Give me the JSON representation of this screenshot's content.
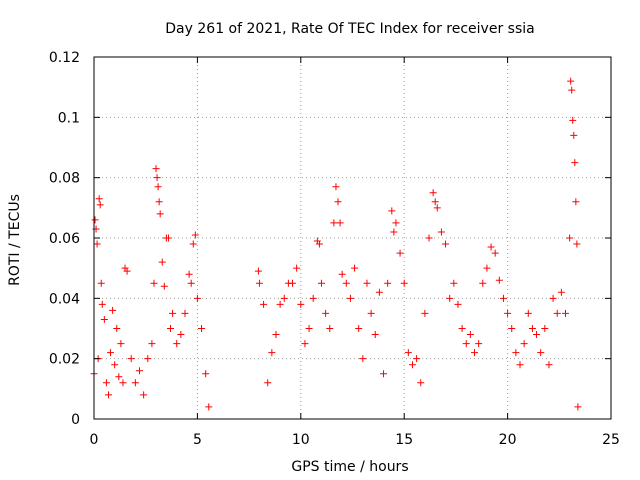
{
  "chart_data": {
    "type": "scatter",
    "title": "Day 261 of 2021, Rate Of TEC Index for receiver ssia",
    "xlabel": "GPS time / hours",
    "ylabel": "ROTI / TECUs",
    "xlim": [
      0,
      25
    ],
    "ylim": [
      0,
      0.12
    ],
    "xticks": [
      0,
      5,
      10,
      15,
      20,
      25
    ],
    "yticks": [
      0,
      0.02,
      0.04,
      0.06,
      0.08,
      0.1,
      0.12
    ],
    "xtick_labels": [
      "0",
      "5",
      "10",
      "15",
      "20",
      "25"
    ],
    "ytick_labels": [
      "0",
      "0.02",
      "0.04",
      "0.06",
      "0.08",
      "0.1",
      "0.12"
    ],
    "grid": true,
    "marker": "+",
    "color": "#ff0000",
    "data_gap_hours": [
      5.6,
      7.9
    ],
    "series": [
      {
        "points": [
          [
            0.0,
            0.015
          ],
          [
            0.05,
            0.066
          ],
          [
            0.1,
            0.063
          ],
          [
            0.15,
            0.058
          ],
          [
            0.2,
            0.02
          ],
          [
            0.25,
            0.073
          ],
          [
            0.3,
            0.071
          ],
          [
            0.35,
            0.045
          ],
          [
            0.4,
            0.038
          ],
          [
            0.5,
            0.033
          ],
          [
            0.6,
            0.012
          ],
          [
            0.7,
            0.008
          ],
          [
            0.8,
            0.022
          ],
          [
            0.9,
            0.036
          ],
          [
            1.0,
            0.018
          ],
          [
            1.1,
            0.03
          ],
          [
            1.2,
            0.014
          ],
          [
            1.3,
            0.025
          ],
          [
            1.4,
            0.012
          ],
          [
            1.5,
            0.05
          ],
          [
            1.6,
            0.049
          ],
          [
            1.8,
            0.02
          ],
          [
            2.0,
            0.012
          ],
          [
            2.2,
            0.016
          ],
          [
            2.4,
            0.008
          ],
          [
            2.6,
            0.02
          ],
          [
            2.8,
            0.025
          ],
          [
            2.9,
            0.045
          ],
          [
            3.0,
            0.083
          ],
          [
            3.05,
            0.08
          ],
          [
            3.1,
            0.077
          ],
          [
            3.15,
            0.072
          ],
          [
            3.2,
            0.068
          ],
          [
            3.3,
            0.052
          ],
          [
            3.4,
            0.044
          ],
          [
            3.5,
            0.06
          ],
          [
            3.6,
            0.06
          ],
          [
            3.7,
            0.03
          ],
          [
            3.8,
            0.035
          ],
          [
            4.0,
            0.025
          ],
          [
            4.2,
            0.028
          ],
          [
            4.4,
            0.035
          ],
          [
            4.6,
            0.048
          ],
          [
            4.7,
            0.045
          ],
          [
            4.8,
            0.058
          ],
          [
            4.9,
            0.061
          ],
          [
            5.0,
            0.04
          ],
          [
            5.2,
            0.03
          ],
          [
            5.4,
            0.015
          ],
          [
            5.55,
            0.004
          ],
          [
            7.95,
            0.049
          ],
          [
            8.0,
            0.045
          ],
          [
            8.2,
            0.038
          ],
          [
            8.4,
            0.012
          ],
          [
            8.6,
            0.022
          ],
          [
            8.8,
            0.028
          ],
          [
            9.0,
            0.038
          ],
          [
            9.2,
            0.04
          ],
          [
            9.4,
            0.045
          ],
          [
            9.6,
            0.045
          ],
          [
            9.8,
            0.05
          ],
          [
            10.0,
            0.038
          ],
          [
            10.2,
            0.025
          ],
          [
            10.4,
            0.03
          ],
          [
            10.6,
            0.04
          ],
          [
            10.8,
            0.059
          ],
          [
            10.9,
            0.058
          ],
          [
            11.0,
            0.045
          ],
          [
            11.2,
            0.035
          ],
          [
            11.4,
            0.03
          ],
          [
            11.6,
            0.065
          ],
          [
            11.7,
            0.077
          ],
          [
            11.8,
            0.072
          ],
          [
            11.9,
            0.065
          ],
          [
            12.0,
            0.048
          ],
          [
            12.2,
            0.045
          ],
          [
            12.4,
            0.04
          ],
          [
            12.6,
            0.05
          ],
          [
            12.8,
            0.03
          ],
          [
            13.0,
            0.02
          ],
          [
            13.2,
            0.045
          ],
          [
            13.4,
            0.035
          ],
          [
            13.6,
            0.028
          ],
          [
            13.8,
            0.042
          ],
          [
            14.0,
            0.015
          ],
          [
            14.2,
            0.045
          ],
          [
            14.4,
            0.069
          ],
          [
            14.5,
            0.062
          ],
          [
            14.6,
            0.065
          ],
          [
            14.8,
            0.055
          ],
          [
            15.0,
            0.045
          ],
          [
            15.2,
            0.022
          ],
          [
            15.4,
            0.018
          ],
          [
            15.6,
            0.02
          ],
          [
            15.8,
            0.012
          ],
          [
            16.0,
            0.035
          ],
          [
            16.2,
            0.06
          ],
          [
            16.4,
            0.075
          ],
          [
            16.5,
            0.072
          ],
          [
            16.6,
            0.07
          ],
          [
            16.8,
            0.062
          ],
          [
            17.0,
            0.058
          ],
          [
            17.2,
            0.04
          ],
          [
            17.4,
            0.045
          ],
          [
            17.6,
            0.038
          ],
          [
            17.8,
            0.03
          ],
          [
            18.0,
            0.025
          ],
          [
            18.2,
            0.028
          ],
          [
            18.4,
            0.022
          ],
          [
            18.6,
            0.025
          ],
          [
            18.8,
            0.045
          ],
          [
            19.0,
            0.05
          ],
          [
            19.2,
            0.057
          ],
          [
            19.4,
            0.055
          ],
          [
            19.6,
            0.046
          ],
          [
            19.8,
            0.04
          ],
          [
            20.0,
            0.035
          ],
          [
            20.2,
            0.03
          ],
          [
            20.4,
            0.022
          ],
          [
            20.6,
            0.018
          ],
          [
            20.8,
            0.025
          ],
          [
            21.0,
            0.035
          ],
          [
            21.2,
            0.03
          ],
          [
            21.4,
            0.028
          ],
          [
            21.6,
            0.022
          ],
          [
            21.8,
            0.03
          ],
          [
            22.0,
            0.018
          ],
          [
            22.2,
            0.04
          ],
          [
            22.4,
            0.035
          ],
          [
            22.6,
            0.042
          ],
          [
            22.8,
            0.035
          ],
          [
            23.0,
            0.06
          ],
          [
            23.05,
            0.112
          ],
          [
            23.1,
            0.109
          ],
          [
            23.15,
            0.099
          ],
          [
            23.2,
            0.094
          ],
          [
            23.25,
            0.085
          ],
          [
            23.3,
            0.072
          ],
          [
            23.35,
            0.058
          ],
          [
            23.4,
            0.004
          ]
        ]
      }
    ]
  }
}
